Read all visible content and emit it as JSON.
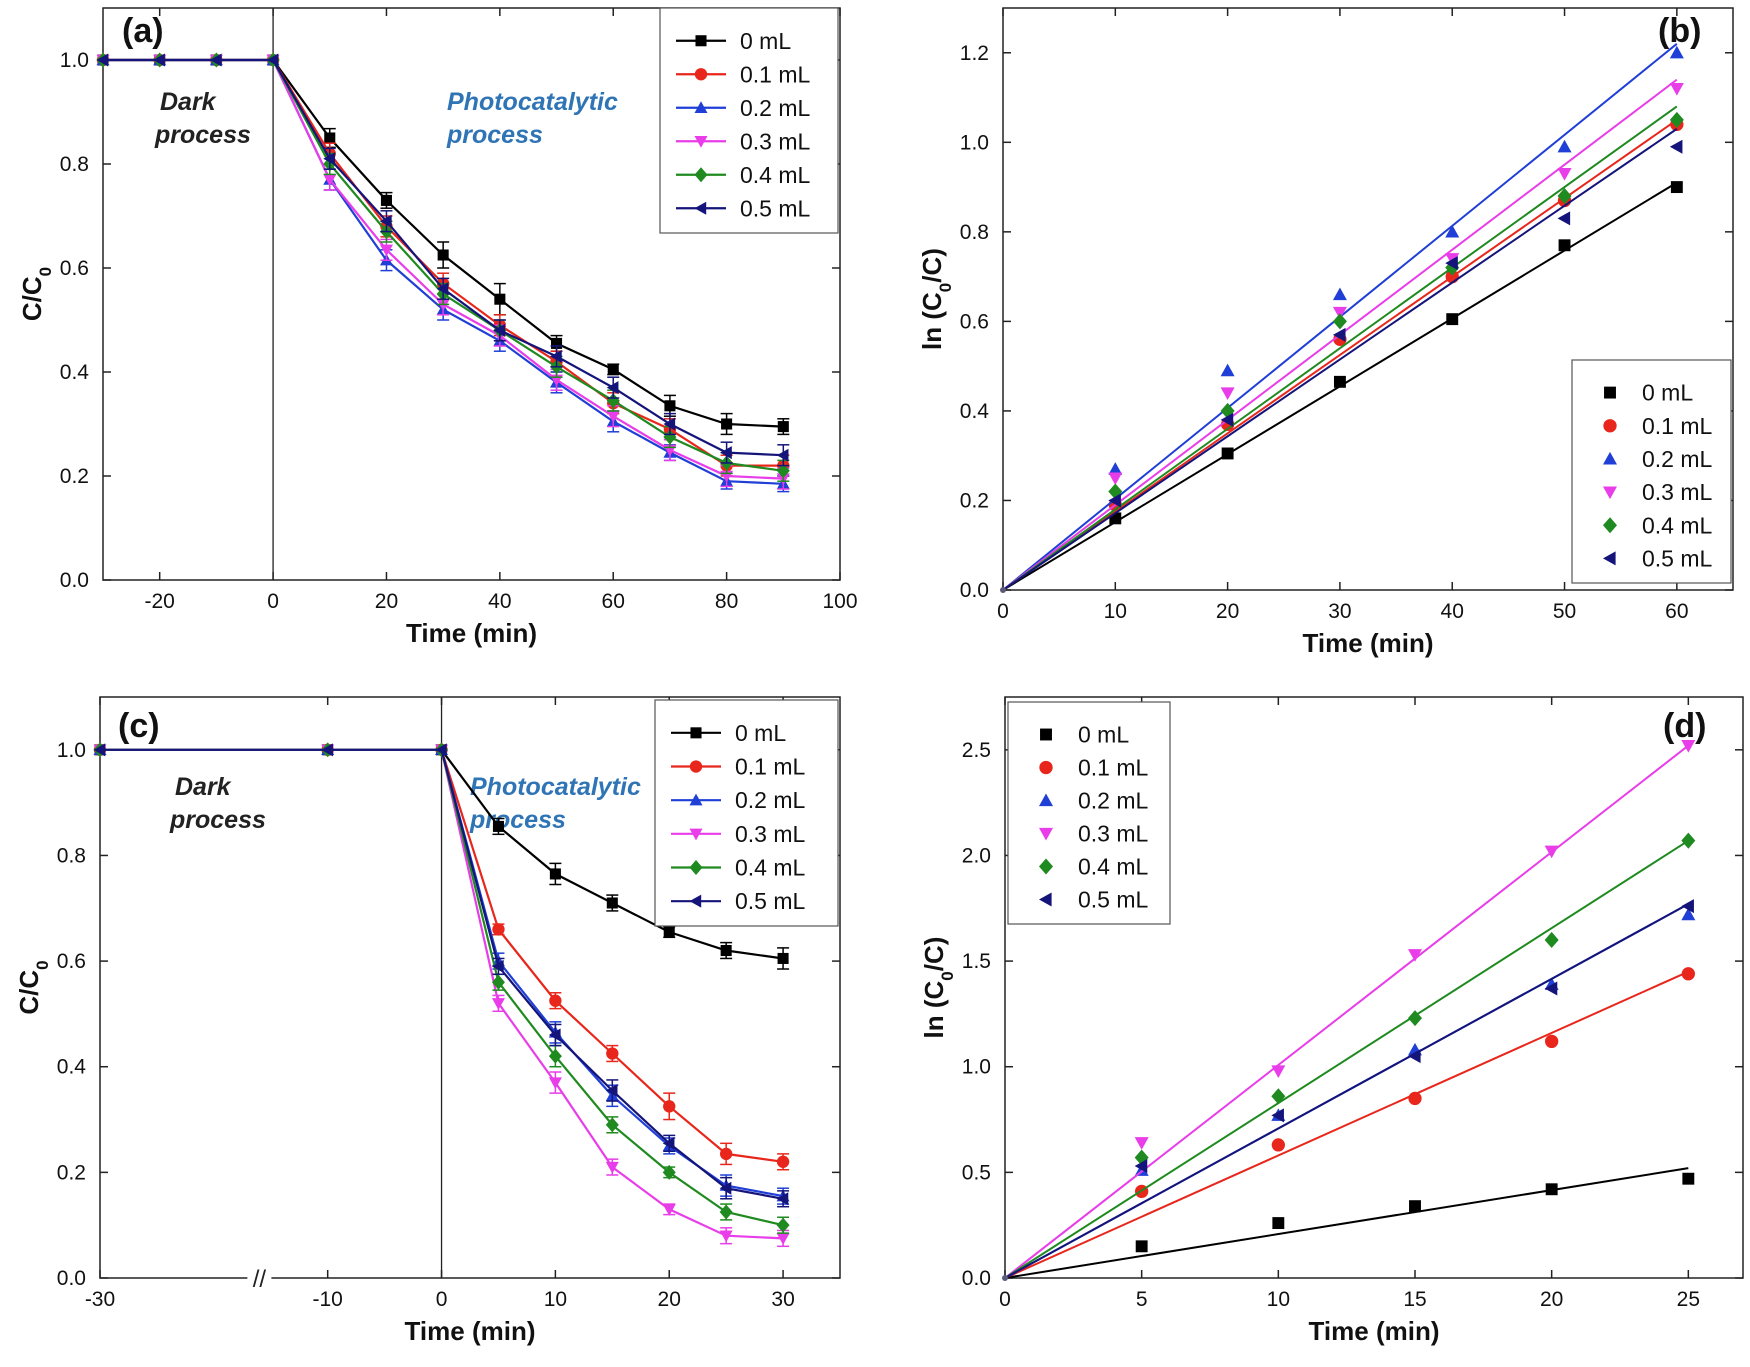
{
  "series_names": [
    "0 mL",
    "0.1 mL",
    "0.2 mL",
    "0.3 mL",
    "0.4 mL",
    "0.5 mL"
  ],
  "series_colors": [
    "#000000",
    "#e8261b",
    "#1f3fd6",
    "#e83de8",
    "#1f8a1f",
    "#14147a"
  ],
  "series_markers": [
    "square",
    "circle",
    "triangle-up",
    "triangle-down",
    "diamond",
    "triangle-left"
  ],
  "chart_data": [
    {
      "id": "a",
      "type": "line",
      "panel_label": "(a)",
      "xlabel": "Time (min)",
      "ylabel": "C/C",
      "ylabel_sub": "0",
      "xlim": [
        -30,
        100
      ],
      "ylim": [
        0,
        1.1
      ],
      "x_ticks": [
        -20,
        0,
        20,
        40,
        60,
        80,
        100
      ],
      "y_ticks": [
        "0.0",
        "0.2",
        "0.4",
        "0.6",
        "0.8",
        "1.0"
      ],
      "annotations": {
        "dark_line1": "Dark",
        "dark_line2": "process",
        "photo_line1": "Photocatalytic",
        "photo_line2": "process"
      },
      "legend_position": "top-right",
      "x": [
        -30,
        -20,
        -10,
        0,
        10,
        20,
        30,
        40,
        50,
        60,
        70,
        80,
        90
      ],
      "series": [
        {
          "name": "0 mL",
          "values": [
            1.0,
            1.0,
            1.0,
            1.0,
            0.85,
            0.73,
            0.625,
            0.54,
            0.455,
            0.405,
            0.335,
            0.3,
            0.295
          ],
          "errors": [
            0,
            0,
            0,
            0,
            0.018,
            0.015,
            0.025,
            0.03,
            0.015,
            0.01,
            0.02,
            0.02,
            0.015
          ]
        },
        {
          "name": "0.1 mL",
          "values": [
            1.0,
            1.0,
            1.0,
            1.0,
            0.82,
            0.68,
            0.57,
            0.49,
            0.42,
            0.34,
            0.29,
            0.22,
            0.22
          ],
          "errors": [
            0,
            0,
            0,
            0,
            0.02,
            0.02,
            0.02,
            0.02,
            0.02,
            0.02,
            0.02,
            0.02,
            0.02
          ]
        },
        {
          "name": "0.2 mL",
          "values": [
            1.0,
            1.0,
            1.0,
            1.0,
            0.77,
            0.615,
            0.52,
            0.46,
            0.38,
            0.305,
            0.245,
            0.19,
            0.185
          ],
          "errors": [
            0,
            0,
            0,
            0,
            0.02,
            0.02,
            0.02,
            0.02,
            0.02,
            0.02,
            0.015,
            0.015,
            0.015
          ]
        },
        {
          "name": "0.3 mL",
          "values": [
            1.0,
            1.0,
            1.0,
            1.0,
            0.77,
            0.635,
            0.53,
            0.47,
            0.385,
            0.315,
            0.25,
            0.2,
            0.195
          ],
          "errors": [
            0,
            0,
            0,
            0,
            0.02,
            0.02,
            0.02,
            0.02,
            0.02,
            0.02,
            0.02,
            0.02,
            0.02
          ]
        },
        {
          "name": "0.4 mL",
          "values": [
            1.0,
            1.0,
            1.0,
            1.0,
            0.8,
            0.67,
            0.55,
            0.48,
            0.41,
            0.345,
            0.275,
            0.225,
            0.21
          ],
          "errors": [
            0,
            0,
            0,
            0,
            0.02,
            0.02,
            0.02,
            0.02,
            0.02,
            0.02,
            0.02,
            0.02,
            0.02
          ]
        },
        {
          "name": "0.5 mL",
          "values": [
            1.0,
            1.0,
            1.0,
            1.0,
            0.81,
            0.69,
            0.56,
            0.48,
            0.43,
            0.37,
            0.3,
            0.245,
            0.24
          ],
          "errors": [
            0,
            0,
            0,
            0,
            0.02,
            0.02,
            0.02,
            0.02,
            0.02,
            0.02,
            0.02,
            0.02,
            0.02
          ]
        }
      ]
    },
    {
      "id": "b",
      "type": "scatter",
      "panel_label": "(b)",
      "xlabel": "Time (min)",
      "ylabel": "ln (C",
      "ylabel_sub": "0",
      "ylabel_tail": "/C)",
      "xlim": [
        0,
        65
      ],
      "ylim": [
        0,
        1.3
      ],
      "x_ticks": [
        0,
        10,
        20,
        30,
        40,
        50,
        60
      ],
      "y_ticks": [
        "0.0",
        "0.2",
        "0.4",
        "0.6",
        "0.8",
        "1.0",
        "1.2"
      ],
      "legend_position": "bottom-right",
      "x": [
        0,
        10,
        20,
        30,
        40,
        50,
        60
      ],
      "series": [
        {
          "name": "0 mL",
          "values": [
            0,
            0.16,
            0.305,
            0.465,
            0.605,
            0.77,
            0.9
          ],
          "fit_end": 0.91
        },
        {
          "name": "0.1 mL",
          "values": [
            0,
            0.19,
            0.37,
            0.56,
            0.7,
            0.87,
            1.04
          ],
          "fit_end": 1.05
        },
        {
          "name": "0.2 mL",
          "values": [
            0,
            0.27,
            0.49,
            0.66,
            0.8,
            0.99,
            1.2
          ],
          "fit_end": 1.22
        },
        {
          "name": "0.3 mL",
          "values": [
            0,
            0.25,
            0.44,
            0.62,
            0.74,
            0.93,
            1.12
          ],
          "fit_end": 1.14
        },
        {
          "name": "0.4 mL",
          "values": [
            0,
            0.22,
            0.4,
            0.6,
            0.72,
            0.88,
            1.05
          ],
          "fit_end": 1.08
        },
        {
          "name": "0.5 mL",
          "values": [
            0,
            0.2,
            0.38,
            0.57,
            0.73,
            0.83,
            0.99
          ],
          "fit_end": 1.03
        }
      ]
    },
    {
      "id": "c",
      "type": "line",
      "panel_label": "(c)",
      "xlabel": "Time (min)",
      "ylabel": "C/C",
      "ylabel_sub": "0",
      "xlim": [
        -30,
        35
      ],
      "ylim": [
        0,
        1.1
      ],
      "x_ticks": [
        -30,
        -10,
        0,
        10,
        20,
        30
      ],
      "y_ticks": [
        "0.0",
        "0.2",
        "0.4",
        "0.6",
        "0.8",
        "1.0"
      ],
      "axis_break": "//",
      "annotations": {
        "dark_line1": "Dark",
        "dark_line2": "process",
        "photo_line1": "Photocatalytic",
        "photo_line2": "process"
      },
      "legend_position": "top-right",
      "x": [
        -30,
        -10,
        0,
        5,
        10,
        15,
        20,
        25,
        30
      ],
      "series": [
        {
          "name": "0 mL",
          "values": [
            1.0,
            1.0,
            1.0,
            0.855,
            0.765,
            0.71,
            0.655,
            0.62,
            0.605
          ],
          "errors": [
            0,
            0,
            0,
            0.015,
            0.02,
            0.015,
            0.01,
            0.015,
            0.02
          ]
        },
        {
          "name": "0.1 mL",
          "values": [
            1.0,
            1.0,
            1.0,
            0.66,
            0.525,
            0.425,
            0.325,
            0.235,
            0.22
          ],
          "errors": [
            0,
            0,
            0,
            0.01,
            0.015,
            0.015,
            0.025,
            0.02,
            0.015
          ]
        },
        {
          "name": "0.2 mL",
          "values": [
            1.0,
            1.0,
            1.0,
            0.6,
            0.465,
            0.345,
            0.25,
            0.175,
            0.155
          ],
          "errors": [
            0,
            0,
            0,
            0.015,
            0.02,
            0.02,
            0.015,
            0.02,
            0.015
          ]
        },
        {
          "name": "0.3 mL",
          "values": [
            1.0,
            1.0,
            1.0,
            0.52,
            0.37,
            0.21,
            0.13,
            0.08,
            0.075
          ],
          "errors": [
            0,
            0,
            0,
            0.015,
            0.02,
            0.015,
            0.01,
            0.015,
            0.015
          ]
        },
        {
          "name": "0.4 mL",
          "values": [
            1.0,
            1.0,
            1.0,
            0.56,
            0.42,
            0.29,
            0.2,
            0.125,
            0.1
          ],
          "errors": [
            0,
            0,
            0,
            0.015,
            0.02,
            0.015,
            0.01,
            0.015,
            0.015
          ]
        },
        {
          "name": "0.5 mL",
          "values": [
            1.0,
            1.0,
            1.0,
            0.59,
            0.46,
            0.355,
            0.255,
            0.17,
            0.15
          ],
          "errors": [
            0,
            0,
            0,
            0.015,
            0.02,
            0.02,
            0.015,
            0.02,
            0.015
          ]
        }
      ]
    },
    {
      "id": "d",
      "type": "scatter",
      "panel_label": "(d)",
      "xlabel": "Time (min)",
      "ylabel": "ln (C",
      "ylabel_sub": "0",
      "ylabel_tail": "/C)",
      "xlim": [
        0,
        27
      ],
      "ylim": [
        0,
        2.75
      ],
      "x_ticks": [
        0,
        5,
        10,
        15,
        20,
        25
      ],
      "y_ticks": [
        "0.0",
        "0.5",
        "1.0",
        "1.5",
        "2.0",
        "2.5"
      ],
      "legend_position": "top-left",
      "x": [
        0,
        5,
        10,
        15,
        20,
        25
      ],
      "series": [
        {
          "name": "0 mL",
          "values": [
            0,
            0.15,
            0.26,
            0.34,
            0.42,
            0.47
          ],
          "fit_end": 0.52
        },
        {
          "name": "0.1 mL",
          "values": [
            0,
            0.41,
            0.63,
            0.85,
            1.12,
            1.44
          ],
          "fit_end": 1.45
        },
        {
          "name": "0.2 mL",
          "values": [
            0,
            0.51,
            0.77,
            1.08,
            1.39,
            1.72
          ],
          "fit_end": 1.77
        },
        {
          "name": "0.3 mL",
          "values": [
            0,
            0.64,
            0.98,
            1.53,
            2.02,
            2.52
          ],
          "fit_end": 2.52
        },
        {
          "name": "0.4 mL",
          "values": [
            0,
            0.57,
            0.86,
            1.23,
            1.6,
            2.07
          ],
          "fit_end": 2.07
        },
        {
          "name": "0.5 mL",
          "values": [
            0,
            0.53,
            0.77,
            1.05,
            1.37,
            1.76
          ],
          "fit_end": 1.77
        }
      ]
    }
  ]
}
